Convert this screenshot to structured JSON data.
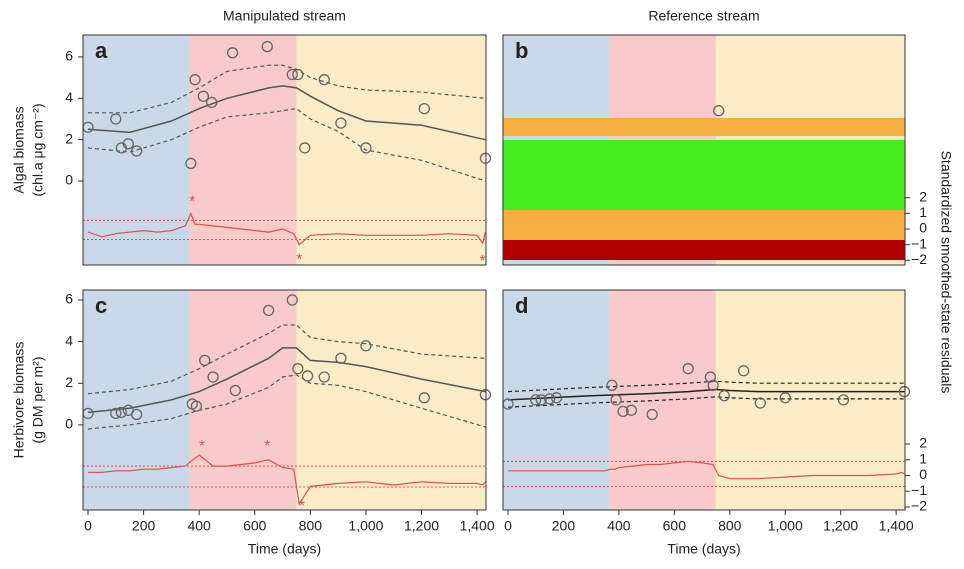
{
  "y2_label": "Standardized smoothed-state residuals",
  "chart_data": [
    {
      "type": "line",
      "panel": "a",
      "title": "Manipulated stream",
      "ylabel": [
        "Algal biomass",
        "(chl.a μg cm⁻²)"
      ],
      "xlim": [
        -18,
        1432
      ],
      "ylim": [
        -4.06,
        7.06
      ],
      "y2lim": [
        -2.3,
        12.4
      ],
      "yticks": [
        0,
        2,
        4,
        6
      ],
      "phases": [
        {
          "start": -18,
          "end": 365,
          "color": "#c9d9e8"
        },
        {
          "start": 365,
          "end": 750,
          "color": "#f8caca"
        },
        {
          "start": 750,
          "end": 1432,
          "color": "#fbecc8"
        }
      ],
      "point_color": "#666666",
      "line_color": "#555555",
      "residual_color": "#d9534f",
      "points": {
        "x": [
          0,
          100,
          120,
          145,
          175,
          370,
          385,
          415,
          445,
          520,
          645,
          735,
          755,
          780,
          850,
          910,
          1000,
          1210,
          1430
        ],
        "y": [
          2.6,
          3.0,
          1.6,
          1.8,
          1.45,
          0.85,
          4.9,
          4.1,
          3.8,
          6.2,
          6.5,
          5.15,
          5.15,
          1.6,
          4.9,
          2.8,
          1.6,
          3.5,
          1.1
        ]
      },
      "state": {
        "x": [
          0,
          150,
          300,
          400,
          500,
          650,
          700,
          750,
          800,
          900,
          1000,
          1200,
          1430
        ],
        "mean": [
          2.5,
          2.35,
          2.9,
          3.5,
          4.0,
          4.5,
          4.6,
          4.5,
          4.1,
          3.4,
          2.9,
          2.7,
          2.0
        ],
        "upper": [
          3.3,
          3.3,
          3.8,
          4.5,
          5.3,
          5.6,
          5.6,
          5.4,
          5.0,
          4.6,
          4.4,
          4.3,
          4.0
        ],
        "lower": [
          1.6,
          1.4,
          2.0,
          2.6,
          3.1,
          3.3,
          3.4,
          3.5,
          3.0,
          2.4,
          1.5,
          1.0,
          0.0
        ]
      },
      "residuals": {
        "x": [
          0,
          50,
          100,
          150,
          200,
          250,
          300,
          350,
          370,
          385,
          400,
          450,
          500,
          550,
          600,
          650,
          700,
          740,
          760,
          800,
          900,
          1000,
          1100,
          1200,
          1300,
          1400,
          1420,
          1430
        ],
        "values": [
          -0.2,
          -0.5,
          -0.3,
          -0.2,
          -0.1,
          -0.2,
          -0.1,
          0.2,
          1.0,
          0.3,
          0.3,
          0.2,
          0.1,
          0.0,
          -0.1,
          -0.2,
          0.0,
          -0.3,
          -1.0,
          -0.4,
          -0.3,
          -0.4,
          -0.4,
          -0.4,
          -0.3,
          -0.4,
          -0.9,
          -0.2
        ]
      },
      "ref_lines": [
        0.55,
        -0.67
      ],
      "outliers": [
        {
          "x": 375,
          "y": 1.9,
          "label": "*"
        },
        {
          "x": 760,
          "y": -1.8,
          "label": "*"
        },
        {
          "x": 1420,
          "y": -1.9,
          "label": "*"
        }
      ]
    },
    {
      "type": "line",
      "panel": "b",
      "title": "Reference stream",
      "xlim": [
        -18,
        1432
      ],
      "ylim": [
        -4.06,
        7.06
      ],
      "y2lim": [
        -2.3,
        12.4
      ],
      "y2ticks": [
        2,
        1,
        0,
        {
          "value": -1,
          "label": "−1"
        },
        {
          "value": -2,
          "label": "−2"
        }
      ],
      "phases": [
        {
          "start": -18,
          "end": 365,
          "color": "#c9d9e8"
        },
        {
          "start": 365,
          "end": 750,
          "color": "#f8caca"
        },
        {
          "start": 750,
          "end": 1432,
          "color": "#fbecc8"
        }
      ],
      "point_color": "#666666",
      "points": {
        "x": [
          760
        ],
        "y": [
          3.4
        ]
      }
    },
    {
      "type": "line",
      "panel": "c",
      "ylabel": [
        "Herbivore biomass",
        "(g DM per m²)"
      ],
      "xlabel": "Time (days)",
      "xlim": [
        -18,
        1432
      ],
      "ylim": [
        -4.09,
        6.48
      ],
      "y2lim": [
        -2.19,
        11.78
      ],
      "yticks": [
        0,
        2,
        4,
        6
      ],
      "xticks": [
        0,
        200,
        400,
        600,
        800,
        {
          "value": 1000,
          "label": "1,000"
        },
        {
          "value": 1200,
          "label": "1,200"
        },
        {
          "value": 1400,
          "label": "1,400"
        }
      ],
      "phases": [
        {
          "start": -18,
          "end": 365,
          "color": "#c9d9e8"
        },
        {
          "start": 365,
          "end": 750,
          "color": "#f8caca"
        },
        {
          "start": 750,
          "end": 1432,
          "color": "#fbecc8"
        }
      ],
      "point_color": "#666666",
      "line_color": "#555555",
      "residual_color": "#d9534f",
      "points": {
        "x": [
          0,
          100,
          120,
          145,
          175,
          375,
          390,
          420,
          450,
          530,
          650,
          735,
          755,
          790,
          850,
          910,
          1000,
          1210,
          1430
        ],
        "y": [
          0.55,
          0.55,
          0.6,
          0.7,
          0.5,
          1.0,
          0.9,
          3.1,
          2.3,
          1.65,
          5.5,
          6.0,
          2.7,
          2.35,
          2.3,
          3.2,
          3.8,
          1.3,
          1.45
        ]
      },
      "state": {
        "x": [
          0,
          150,
          300,
          400,
          500,
          650,
          700,
          750,
          800,
          900,
          1000,
          1200,
          1430
        ],
        "mean": [
          0.6,
          0.8,
          1.2,
          1.6,
          2.2,
          3.2,
          3.7,
          3.7,
          3.1,
          3.0,
          2.8,
          2.2,
          1.6
        ],
        "upper": [
          1.5,
          1.7,
          2.1,
          2.7,
          3.4,
          4.4,
          4.8,
          4.8,
          4.2,
          4.0,
          3.9,
          3.4,
          3.2
        ],
        "lower": [
          -0.2,
          0.0,
          0.3,
          0.7,
          1.0,
          1.8,
          2.3,
          2.4,
          2.0,
          1.9,
          1.6,
          0.8,
          -0.1
        ]
      },
      "residuals": {
        "x": [
          0,
          50,
          100,
          150,
          200,
          250,
          300,
          350,
          370,
          385,
          400,
          450,
          500,
          550,
          600,
          650,
          700,
          740,
          760,
          800,
          900,
          1000,
          1100,
          1200,
          1300,
          1400,
          1420,
          1430
        ],
        "values": [
          0.2,
          0.2,
          0.3,
          0.3,
          0.4,
          0.4,
          0.5,
          0.6,
          0.9,
          1.1,
          1.3,
          0.6,
          0.6,
          0.7,
          0.8,
          1.0,
          0.5,
          0.4,
          -1.8,
          -0.7,
          -0.5,
          -0.4,
          -0.6,
          -0.4,
          -0.5,
          -0.5,
          -0.6,
          -0.4
        ]
      },
      "ref_lines": [
        0.6,
        -0.73
      ],
      "outliers": [
        {
          "x": 410,
          "y": 2.0,
          "label": "*"
        },
        {
          "x": 645,
          "y": 2.0,
          "label": "*"
        },
        {
          "x": 770,
          "y": -1.8,
          "label": "*"
        }
      ]
    },
    {
      "type": "line",
      "panel": "d",
      "xlabel": "Time (days)",
      "xlim": [
        -18,
        1432
      ],
      "ylim": [
        -4.09,
        6.48
      ],
      "y2lim": [
        -2.19,
        11.78
      ],
      "xticks": [
        0,
        200,
        400,
        600,
        800,
        {
          "value": 1000,
          "label": "1,000"
        },
        {
          "value": 1200,
          "label": "1,200"
        },
        {
          "value": 1400,
          "label": "1,400"
        }
      ],
      "y2ticks": [
        2,
        1,
        0,
        {
          "value": -1,
          "label": "−1"
        },
        {
          "value": -2,
          "label": "−2"
        }
      ],
      "phases": [
        {
          "start": -18,
          "end": 365,
          "color": "#c9d9e8"
        },
        {
          "start": 365,
          "end": 750,
          "color": "#f8caca"
        },
        {
          "start": 750,
          "end": 1432,
          "color": "#fbecc8"
        }
      ],
      "point_color": "#666666",
      "line_color": "#222222",
      "residual_color": "#d9534f",
      "points": {
        "x": [
          0,
          100,
          120,
          150,
          175,
          375,
          390,
          415,
          445,
          520,
          650,
          730,
          740,
          780,
          850,
          910,
          1000,
          1210,
          1430
        ],
        "y": [
          1.0,
          1.2,
          1.2,
          1.25,
          1.3,
          1.9,
          1.2,
          0.65,
          0.7,
          0.5,
          2.7,
          2.3,
          1.9,
          1.4,
          2.6,
          1.05,
          1.3,
          1.2,
          1.6
        ]
      },
      "state": {
        "x": [
          0,
          150,
          300,
          400,
          500,
          650,
          700,
          750,
          800,
          900,
          1000,
          1200,
          1430
        ],
        "mean": [
          1.2,
          1.3,
          1.4,
          1.45,
          1.5,
          1.6,
          1.65,
          1.7,
          1.65,
          1.6,
          1.6,
          1.6,
          1.6
        ],
        "upper": [
          1.6,
          1.7,
          1.8,
          1.85,
          1.9,
          2.0,
          2.05,
          2.1,
          2.05,
          2.0,
          2.0,
          2.0,
          2.0
        ],
        "lower": [
          0.85,
          0.95,
          1.05,
          1.1,
          1.15,
          1.25,
          1.3,
          1.35,
          1.3,
          1.25,
          1.25,
          1.25,
          1.25
        ]
      },
      "residuals": {
        "x": [
          0,
          50,
          100,
          150,
          200,
          250,
          300,
          350,
          370,
          385,
          400,
          450,
          500,
          550,
          600,
          650,
          700,
          740,
          760,
          800,
          900,
          1000,
          1100,
          1200,
          1300,
          1400,
          1420,
          1430
        ],
        "values": [
          0.3,
          0.3,
          0.3,
          0.3,
          0.3,
          0.3,
          0.3,
          0.3,
          0.4,
          0.4,
          0.5,
          0.6,
          0.7,
          0.7,
          0.8,
          0.9,
          0.8,
          0.7,
          0.0,
          -0.2,
          -0.2,
          -0.1,
          0.0,
          0.0,
          0.0,
          0.1,
          0.2,
          0.1
        ]
      },
      "ref_lines": [
        0.9,
        -0.7
      ]
    }
  ]
}
